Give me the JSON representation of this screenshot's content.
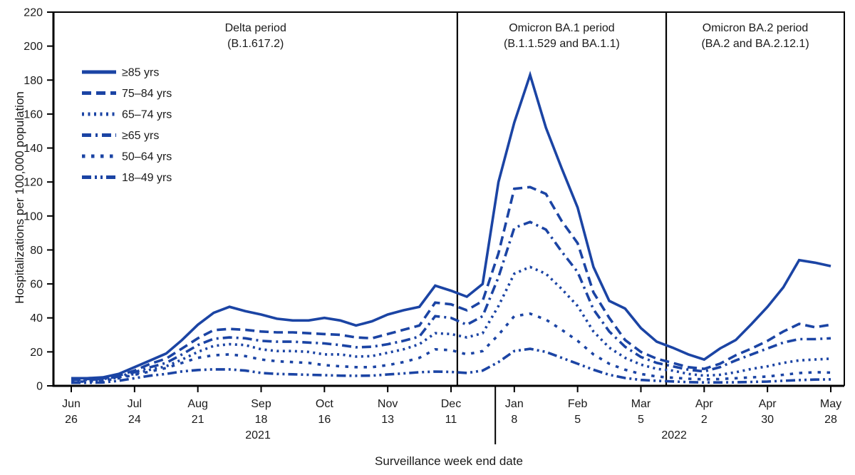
{
  "chart_data": {
    "type": "line",
    "title": "",
    "xlabel": "Surveillance week end date",
    "ylabel": "Hospitalizations per 100,000 population",
    "ylim": [
      0,
      220
    ],
    "ytick_step": 20,
    "grid": false,
    "legend_position": "top-left-inside",
    "line_color": "#1b44a4",
    "x_unit": "surveillance week (weekly points, Jun 26 2021 - May 28 2022)",
    "x_ticks": [
      {
        "week": 0,
        "month": "Jun",
        "day": "26"
      },
      {
        "week": 4,
        "month": "Jul",
        "day": "24"
      },
      {
        "week": 8,
        "month": "Aug",
        "day": "21"
      },
      {
        "week": 12,
        "month": "Sep",
        "day": "18"
      },
      {
        "week": 16,
        "month": "Oct",
        "day": "16"
      },
      {
        "week": 20,
        "month": "Nov",
        "day": "13"
      },
      {
        "week": 24,
        "month": "Dec",
        "day": "11"
      },
      {
        "week": 28,
        "month": "Jan",
        "day": "8"
      },
      {
        "week": 32,
        "month": "Feb",
        "day": "5"
      },
      {
        "week": 36,
        "month": "Mar",
        "day": "5"
      },
      {
        "week": 40,
        "month": "Apr",
        "day": "2"
      },
      {
        "week": 44,
        "month": "Apr",
        "day": "30"
      },
      {
        "week": 48,
        "month": "May",
        "day": "28"
      }
    ],
    "year_labels": [
      {
        "label": "2021",
        "center_week": 11.8
      },
      {
        "label": "2022",
        "center_week": 38.1
      }
    ],
    "year_divider_week": 26.8,
    "periods": [
      {
        "line1": "Delta period",
        "line2": "(B.1.617.2)",
        "start_week": -1.1,
        "end_week": 24.4
      },
      {
        "line1": "Omicron BA.1 period",
        "line2": "(B.1.1.529 and BA.1.1)",
        "start_week": 24.4,
        "end_week": 37.6
      },
      {
        "line1": "Omicron BA.2 period",
        "line2": "(BA.2 and BA.2.12.1)",
        "start_week": 37.6,
        "end_week": 48.86
      }
    ],
    "period_divider_weeks": [
      24.4,
      37.6
    ],
    "series": [
      {
        "name": "≥85 yrs",
        "dash": "solid",
        "values": [
          4.5,
          4.5,
          5,
          7,
          11,
          15,
          19,
          27,
          36,
          43,
          46.5,
          44,
          42,
          39.5,
          38.5,
          38.5,
          40,
          38.5,
          35.5,
          38,
          42,
          44.5,
          46.5,
          59,
          56,
          52.5,
          60,
          120,
          155,
          183,
          152,
          128,
          105,
          70,
          50,
          45.5,
          34,
          26,
          22.5,
          18.5,
          15.5,
          22,
          27,
          36.5,
          46.5,
          58,
          74,
          72.5,
          70.5
        ]
      },
      {
        "name": "75–84 yrs",
        "dash": "long-dash",
        "values": [
          4,
          4,
          4.5,
          6,
          9,
          13,
          16,
          22,
          28,
          32.8,
          33.5,
          33,
          32,
          31.5,
          31.5,
          31,
          30.5,
          30,
          28.5,
          28,
          30.5,
          33,
          35.5,
          49,
          48,
          44.5,
          50,
          78,
          116,
          117,
          113,
          97,
          84,
          55,
          40,
          27,
          20,
          16,
          13.5,
          11,
          10,
          13,
          18,
          22,
          26.5,
          32,
          36.5,
          34.5,
          36
        ]
      },
      {
        "name": "65–74 yrs",
        "dash": "dotted",
        "values": [
          3,
          3,
          3.5,
          5,
          7,
          9.5,
          11.5,
          15.5,
          20,
          23.5,
          24.5,
          24,
          21.5,
          20.5,
          20.5,
          20,
          18.5,
          18.5,
          17.2,
          17.5,
          19.5,
          21.5,
          24.5,
          31,
          30.5,
          28.5,
          31,
          47,
          66,
          70,
          66,
          57,
          47,
          32,
          22.5,
          16.5,
          12.5,
          10,
          9,
          7,
          6,
          6.5,
          8,
          10,
          11.5,
          13.5,
          15,
          15.5,
          16
        ]
      },
      {
        "name": "≥65 yrs",
        "dash": "dash-dot",
        "values": [
          3.5,
          3.5,
          4,
          5.5,
          8,
          11,
          13.5,
          18.5,
          24,
          27.7,
          28.5,
          28,
          26.5,
          26,
          26,
          25.5,
          25,
          24,
          22.7,
          23,
          24.5,
          26.5,
          29,
          41,
          40,
          36,
          41,
          64,
          93,
          96.5,
          92,
          79,
          67,
          45,
          32,
          23,
          17,
          13.5,
          11.5,
          9.5,
          8.5,
          11,
          15,
          18.5,
          22,
          25.5,
          27.5,
          27.5,
          28
        ]
      },
      {
        "name": "50–64 yrs",
        "dash": "short-dash",
        "values": [
          2.5,
          2.5,
          3,
          4.5,
          6.5,
          8.5,
          10.5,
          13.5,
          16.5,
          18,
          18.5,
          17.5,
          15.5,
          14.5,
          14,
          13.5,
          12.2,
          11.5,
          11,
          11,
          12.2,
          14,
          16.5,
          21.5,
          21,
          18.5,
          20.5,
          30,
          41,
          42.5,
          39,
          33,
          26.5,
          18.5,
          13,
          9.5,
          7,
          5.5,
          4.8,
          4.2,
          3.8,
          4,
          4.5,
          5,
          5.5,
          6.5,
          7.5,
          8,
          7.8
        ]
      },
      {
        "name": "18–49 yrs",
        "dash": "dash-dot-dot",
        "values": [
          1.8,
          1.8,
          2,
          3,
          4.5,
          6,
          7,
          8.5,
          9.3,
          9.7,
          9.7,
          9,
          7.6,
          7,
          6.8,
          6.5,
          6.3,
          6,
          5.9,
          6,
          6.7,
          7.3,
          8,
          8.4,
          8.2,
          7.6,
          9,
          14,
          20.5,
          21.8,
          20,
          16.5,
          13,
          9.5,
          6.5,
          4.6,
          3.5,
          3,
          2.6,
          2.2,
          2,
          2,
          2.1,
          2.3,
          2.5,
          3,
          3.4,
          3.7,
          3.8
        ]
      }
    ]
  }
}
